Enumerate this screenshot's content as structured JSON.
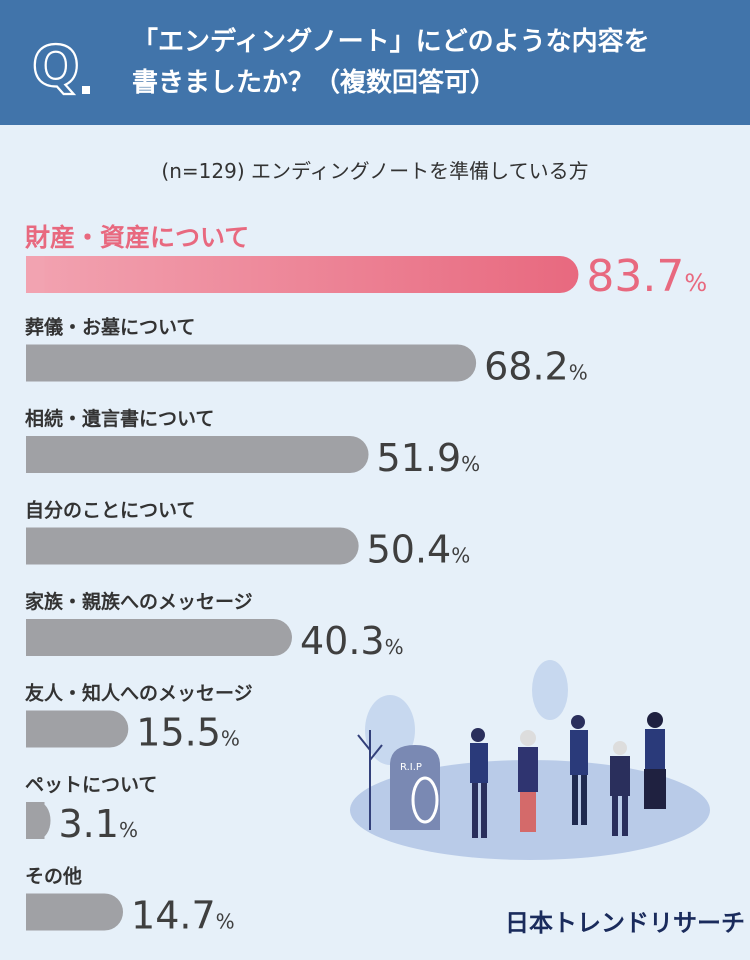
{
  "question": {
    "badge": "Q.",
    "title_line1": "「エンディングノート」にどのような内容を",
    "title_line2": "書きましたか？（複数回答可）"
  },
  "subtitle": "(n=129) エンディングノートを準備している方",
  "brand": "日本トレンドリサーチ",
  "colors": {
    "header": "#4174aa",
    "highlight": "#e8697f",
    "bar": "#a0a1a5",
    "value": "#3f3f3f",
    "background": "#e6f0f9"
  },
  "chart_data": {
    "type": "bar",
    "orientation": "horizontal",
    "unit": "%",
    "categories": [
      "財産・資産について",
      "葬儀・お墓について",
      "相続・遺言書について",
      "自分のことについて",
      "家族・親族へのメッセージ",
      "友人・知人へのメッセージ",
      "ペットについて",
      "その他"
    ],
    "values": [
      83.7,
      68.2,
      51.9,
      50.4,
      40.3,
      15.5,
      3.1,
      14.7
    ],
    "highlight_index": 0,
    "xlim": [
      0,
      100
    ],
    "grid": false,
    "legend": "none"
  }
}
